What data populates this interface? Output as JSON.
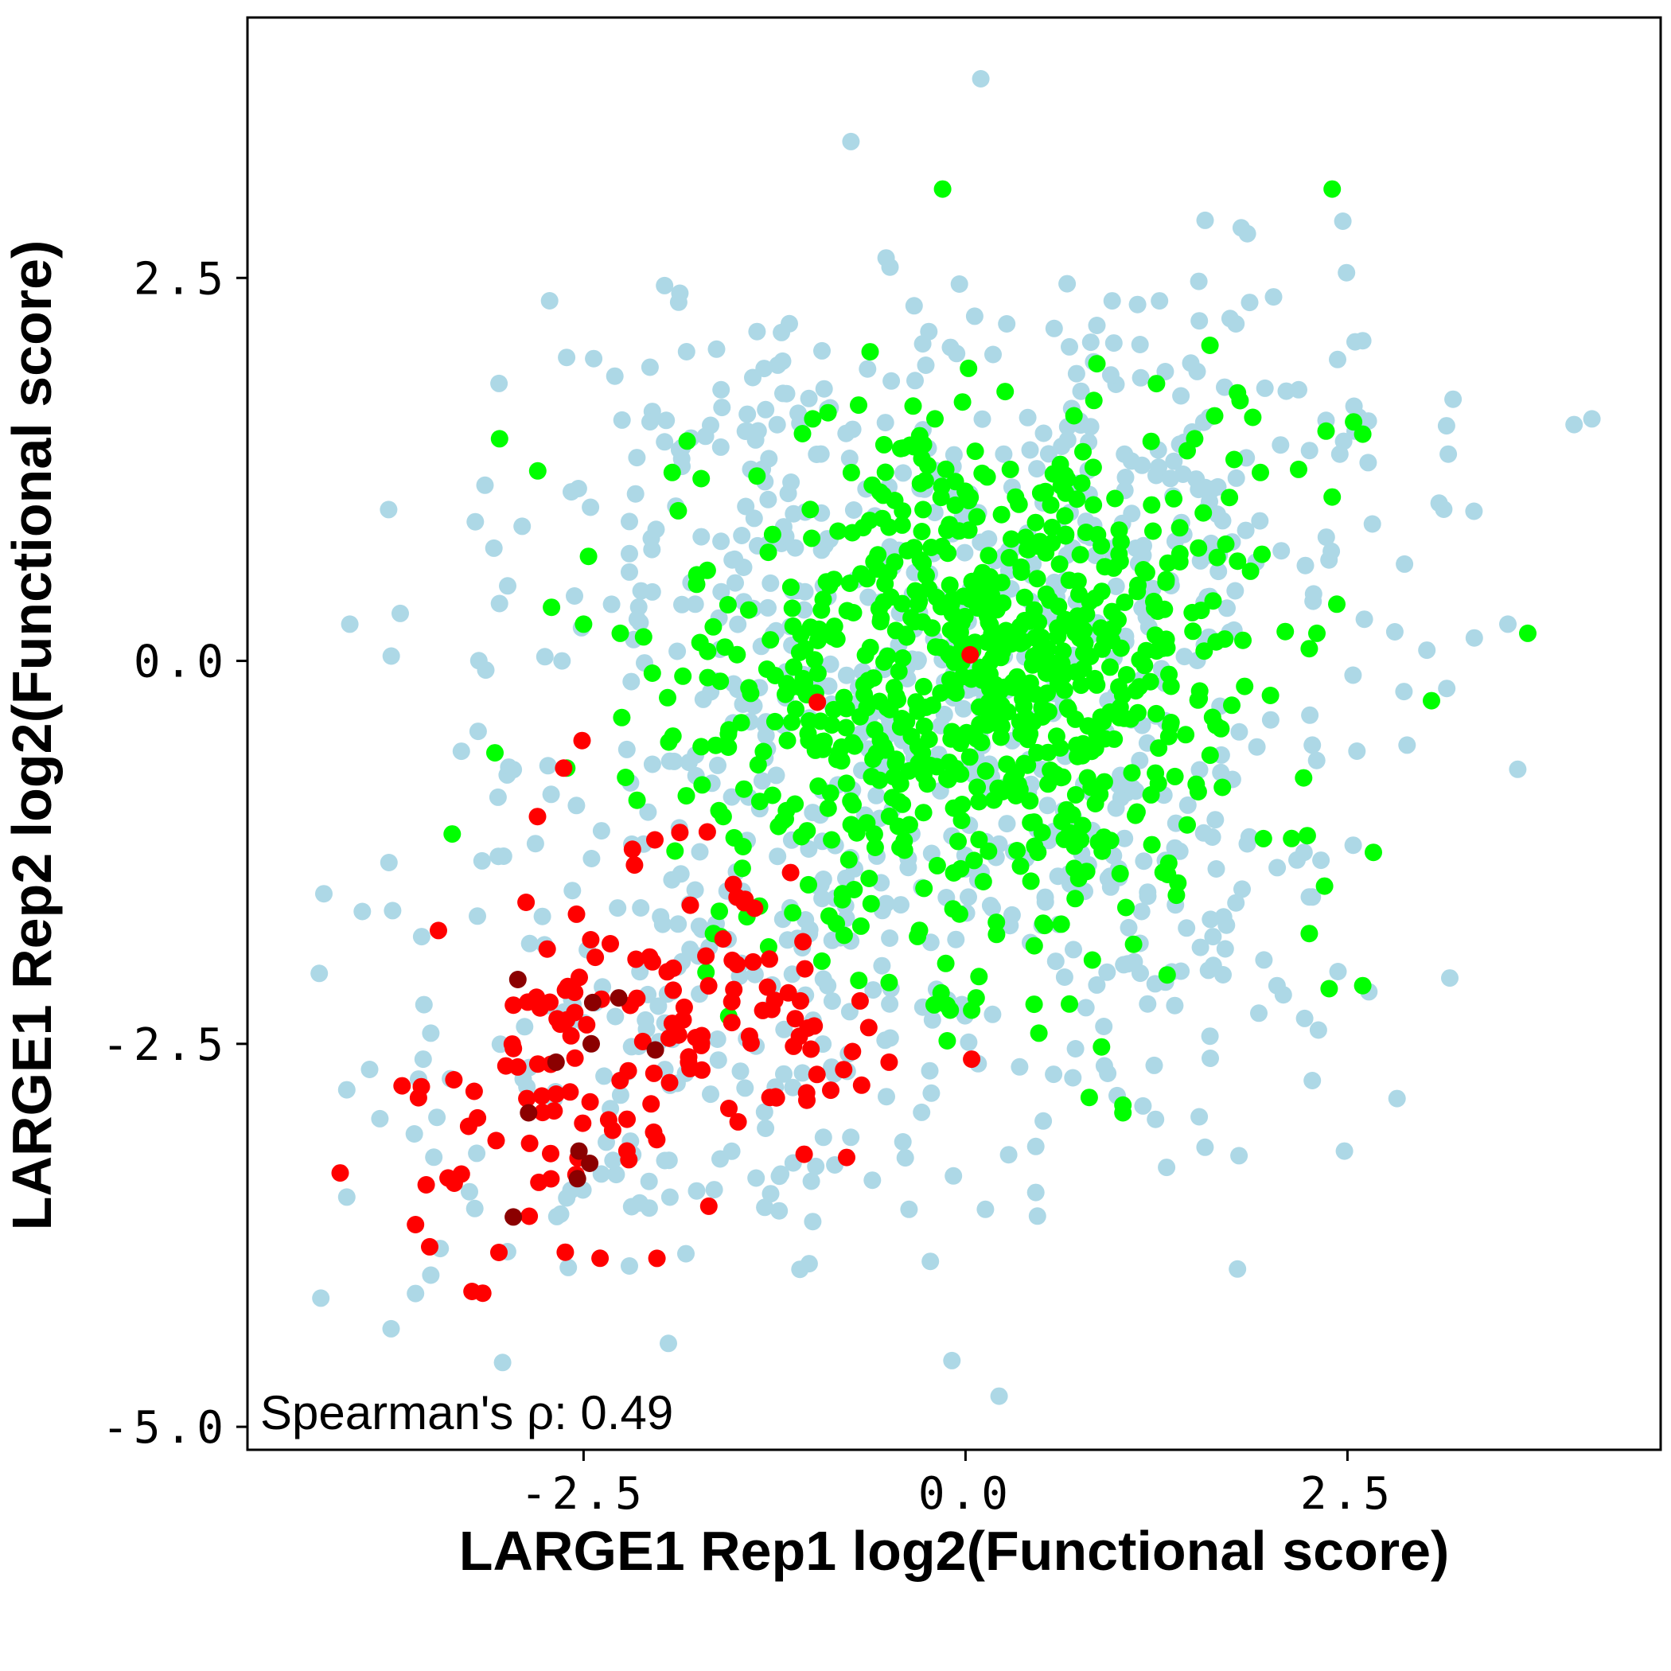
{
  "chart_data": {
    "type": "scatter",
    "xlabel": "LARGE1 Rep1 log2(Functional score)",
    "ylabel": "LARGE1 Rep2 log2(Functional score)",
    "xlim": [
      -4.7,
      4.55
    ],
    "ylim": [
      -5.15,
      4.2
    ],
    "xticks": [
      -2.5,
      0.0,
      2.5
    ],
    "xtick_labels": [
      "-2.5",
      "0.0",
      "2.5"
    ],
    "yticks": [
      -5.0,
      -2.5,
      0.0,
      2.5
    ],
    "ytick_labels": [
      "-5.0",
      "-2.5",
      "0.0",
      "2.5"
    ],
    "annotation": "Spearman's ρ: 0.49",
    "grid": false,
    "legend": "none",
    "series": [
      {
        "color": "#add8e6",
        "points": [
          [
            0.1,
            3.8
          ],
          [
            -0.75,
            3.39
          ],
          [
            -0.52,
            2.63
          ],
          [
            -0.04,
            2.46
          ],
          [
            -1.97,
            2.45
          ],
          [
            -1.87,
            2.4
          ],
          [
            0.96,
            2.35
          ],
          [
            1.27,
            2.35
          ],
          [
            1.86,
            2.34
          ],
          [
            2.47,
            2.87
          ],
          [
            2.6,
            2.09
          ],
          [
            -0.24,
            2.15
          ],
          [
            -0.28,
            2.07
          ],
          [
            0.27,
            2.2
          ],
          [
            0.86,
            2.19
          ],
          [
            -1.43,
            1.5
          ],
          [
            -1.6,
            1.77
          ],
          [
            -1.97,
            1.43
          ],
          [
            -2.16,
            1.09
          ],
          [
            -2.2,
            0.91
          ],
          [
            -2.2,
            0.7
          ],
          [
            -2.2,
            0.58
          ],
          [
            -2.05,
            0.45
          ],
          [
            -2.13,
            0.25
          ],
          [
            -3.7,
            0.31
          ],
          [
            -4.03,
            0.24
          ],
          [
            -3.14,
            -0.06
          ],
          [
            -3.19,
            -0.46
          ],
          [
            -2.96,
            -0.71
          ],
          [
            -3.3,
            -0.59
          ],
          [
            -3.06,
            -0.89
          ],
          [
            -4.2,
            -1.52
          ],
          [
            -3.75,
            -1.63
          ],
          [
            -3.56,
            -1.8
          ],
          [
            -4.23,
            -2.04
          ],
          [
            -3.5,
            -2.43
          ],
          [
            -3.55,
            -2.6
          ],
          [
            -3.58,
            -2.73
          ],
          [
            -4.05,
            -2.8
          ],
          [
            -3.46,
            -2.98
          ],
          [
            -3.48,
            -3.24
          ],
          [
            -4.05,
            -3.5
          ],
          [
            -3.5,
            -4.01
          ],
          [
            -3.6,
            -4.13
          ],
          [
            -4.22,
            -4.16
          ],
          [
            -3.76,
            -4.36
          ],
          [
            -3.03,
            -4.58
          ],
          [
            -2.6,
            -3.96
          ],
          [
            -2.2,
            -3.95
          ],
          [
            -1.83,
            -3.87
          ],
          [
            -1.76,
            -3.46
          ],
          [
            -1.22,
            -3.59
          ],
          [
            -1.0,
            -3.66
          ],
          [
            -1.21,
            -3.35
          ],
          [
            -0.98,
            -3.3
          ],
          [
            -0.93,
            -3.11
          ],
          [
            -0.61,
            -3.39
          ],
          [
            -0.23,
            -3.92
          ],
          [
            -0.37,
            -3.58
          ],
          [
            -0.41,
            -3.14
          ],
          [
            0.13,
            -3.58
          ],
          [
            0.22,
            -4.8
          ],
          [
            0.46,
            -3.47
          ],
          [
            0.46,
            -3.17
          ],
          [
            1.78,
            -3.97
          ],
          [
            1.79,
            -3.23
          ],
          [
            2.48,
            -3.2
          ],
          [
            2.27,
            -2.74
          ],
          [
            2.31,
            -2.41
          ],
          [
            2.08,
            -2.18
          ],
          [
            2.64,
            -2.16
          ],
          [
            3.17,
            -2.07
          ],
          [
            1.59,
            -2.02
          ],
          [
            1.35,
            -2.03
          ],
          [
            1.37,
            -2.25
          ],
          [
            1.6,
            -2.45
          ],
          [
            1.92,
            -2.3
          ],
          [
            1.77,
            -1.58
          ],
          [
            1.62,
            -1.8
          ],
          [
            1.7,
            -1.88
          ],
          [
            2.04,
            -1.35
          ],
          [
            2.17,
            -1.3
          ],
          [
            3.33,
            0.15
          ],
          [
            3.02,
            0.07
          ],
          [
            2.81,
            0.19
          ],
          [
            3.55,
            0.24
          ],
          [
            2.87,
            -0.2
          ],
          [
            2.89,
            -0.55
          ],
          [
            3.15,
            -0.18
          ],
          [
            2.27,
            -0.55
          ],
          [
            3.13,
            0.99
          ],
          [
            3.1,
            1.03
          ],
          [
            3.16,
            1.35
          ],
          [
            4.1,
            1.58
          ],
          [
            2.55,
            1.5
          ],
          [
            2.45,
            1.35
          ],
          [
            2.36,
            1.57
          ],
          [
            2.18,
            1.77
          ],
          [
            1.96,
            1.78
          ],
          [
            1.41,
            1.73
          ],
          [
            1.77,
            2.2
          ],
          [
            1.53,
            2.22
          ],
          [
            0.82,
            2.08
          ],
          [
            0.68,
            2.05
          ],
          [
            0.58,
            2.17
          ],
          [
            0.18,
            2.0
          ],
          [
            -0.26,
            1.93
          ],
          [
            -0.33,
            1.83
          ],
          [
            0.25,
            1.35
          ]
        ],
        "cluster_centers": [
          [
            0.2,
            0.3
          ],
          [
            -0.8,
            -0.9
          ],
          [
            -2.0,
            -2.5
          ],
          [
            0.8,
            -1.5
          ],
          [
            1.3,
            0.9
          ],
          [
            -1.3,
            0.8
          ]
        ]
      },
      {
        "color": "#00ff00",
        "points": [
          [
            -0.15,
            3.08
          ],
          [
            2.4,
            3.08
          ],
          [
            -3.05,
            1.45
          ],
          [
            -2.8,
            1.24
          ],
          [
            -1.92,
            1.23
          ],
          [
            -1.73,
            1.19
          ],
          [
            -1.88,
            0.98
          ],
          [
            -1.76,
            0.5
          ],
          [
            -2.71,
            0.35
          ],
          [
            -2.5,
            0.24
          ],
          [
            -2.26,
            0.18
          ],
          [
            -2.05,
            -0.08
          ],
          [
            -1.85,
            -0.1
          ],
          [
            -1.95,
            -0.24
          ],
          [
            -2.25,
            -0.37
          ],
          [
            -1.73,
            -0.56
          ],
          [
            -3.08,
            -0.6
          ],
          [
            -2.61,
            -0.7
          ],
          [
            -2.15,
            -0.91
          ],
          [
            -3.36,
            -1.13
          ],
          [
            -1.65,
            -1.78
          ],
          [
            -1.55,
            -2.32
          ],
          [
            -0.94,
            -1.96
          ],
          [
            -0.5,
            -2.1
          ],
          [
            -0.1,
            -2.28
          ],
          [
            0.04,
            -2.28
          ],
          [
            -0.12,
            -2.48
          ],
          [
            0.07,
            -2.2
          ],
          [
            0.48,
            -2.43
          ],
          [
            0.68,
            -2.24
          ],
          [
            0.45,
            -1.86
          ],
          [
            0.36,
            -1.34
          ],
          [
            1.05,
            -1.61
          ],
          [
            1.1,
            -1.85
          ],
          [
            0.89,
            -2.52
          ],
          [
            0.81,
            -2.85
          ],
          [
            1.03,
            -2.9
          ],
          [
            1.03,
            -2.95
          ],
          [
            1.32,
            -2.05
          ],
          [
            1.38,
            -1.53
          ],
          [
            1.33,
            -1.32
          ],
          [
            1.39,
            -1.45
          ],
          [
            2.25,
            -1.78
          ],
          [
            2.35,
            -1.47
          ],
          [
            2.38,
            -2.14
          ],
          [
            2.6,
            -2.12
          ],
          [
            2.67,
            -1.25
          ],
          [
            1.95,
            -1.16
          ],
          [
            1.22,
            -1.2
          ],
          [
            3.05,
            -0.26
          ],
          [
            3.68,
            0.18
          ],
          [
            2.3,
            0.18
          ],
          [
            2.25,
            0.08
          ],
          [
            2.43,
            0.37
          ],
          [
            2.54,
            1.56
          ],
          [
            2.6,
            1.48
          ],
          [
            2.4,
            1.07
          ],
          [
            2.36,
            1.5
          ],
          [
            2.18,
            1.25
          ],
          [
            1.93,
            1.23
          ],
          [
            1.88,
            1.59
          ],
          [
            1.5,
            1.45
          ],
          [
            1.6,
            2.06
          ],
          [
            1.78,
            1.75
          ],
          [
            1.25,
            1.81
          ],
          [
            0.71,
            1.6
          ],
          [
            0.84,
            1.7
          ],
          [
            0.86,
            1.94
          ],
          [
            0.02,
            1.91
          ],
          [
            -0.02,
            1.69
          ],
          [
            -0.2,
            1.58
          ],
          [
            -0.3,
            1.47
          ],
          [
            -0.7,
            1.67
          ],
          [
            -0.9,
            1.62
          ],
          [
            -1.0,
            1.58
          ]
        ],
        "cluster_centers": [
          [
            0.35,
            0.3
          ],
          [
            0.1,
            -0.3
          ],
          [
            -0.4,
            0.6
          ],
          [
            0.9,
            0.5
          ],
          [
            0.7,
            -0.6
          ],
          [
            -0.2,
            -1.0
          ],
          [
            -1.0,
            -0.5
          ]
        ]
      },
      {
        "color": "#ff0000",
        "points": [
          [
            0.03,
            0.04
          ],
          [
            -0.97,
            -0.27
          ],
          [
            0.04,
            -2.6
          ],
          [
            -2.51,
            -0.52
          ],
          [
            -2.63,
            -0.7
          ],
          [
            -3.45,
            -1.76
          ],
          [
            -3.53,
            -3.42
          ],
          [
            -3.6,
            -3.68
          ],
          [
            -3.3,
            -3.35
          ],
          [
            -2.62,
            -3.86
          ],
          [
            -2.02,
            -3.9
          ],
          [
            -1.68,
            -3.56
          ],
          [
            -1.28,
            -2.85
          ],
          [
            -1.04,
            -2.82
          ],
          [
            -0.68,
            -2.77
          ],
          [
            -0.5,
            -2.62
          ],
          [
            -0.74,
            -2.55
          ],
          [
            -0.69,
            -2.22
          ],
          [
            -1.08,
            -2.22
          ],
          [
            -1.52,
            -1.46
          ],
          [
            -1.87,
            -1.12
          ],
          [
            -2.18,
            -1.23
          ]
        ],
        "cluster_centers": [
          [
            -2.0,
            -2.2
          ],
          [
            -2.6,
            -2.7
          ],
          [
            -1.7,
            -1.8
          ],
          [
            -3.0,
            -3.1
          ],
          [
            -1.4,
            -2.5
          ]
        ]
      },
      {
        "color": "#8b0000",
        "points": [
          [
            -2.93,
            -2.08
          ],
          [
            -2.45,
            -2.5
          ],
          [
            -2.03,
            -2.54
          ],
          [
            -2.68,
            -2.62
          ],
          [
            -2.44,
            -2.23
          ],
          [
            -2.27,
            -2.2
          ],
          [
            -2.86,
            -2.95
          ],
          [
            -2.53,
            -3.2
          ],
          [
            -2.46,
            -3.28
          ],
          [
            -2.54,
            -3.38
          ],
          [
            -2.96,
            -3.63
          ]
        ]
      }
    ]
  }
}
